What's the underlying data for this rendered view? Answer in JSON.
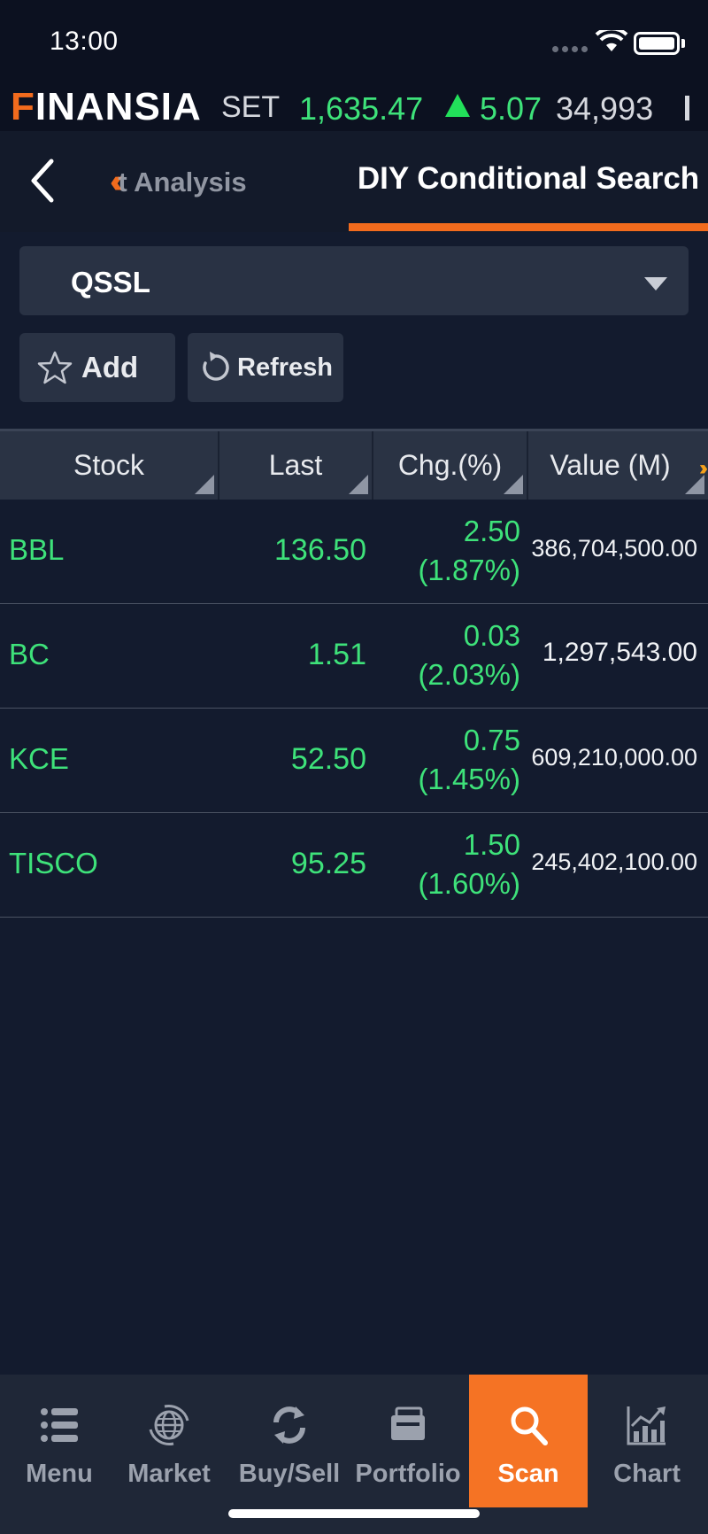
{
  "status": {
    "time": "13:00"
  },
  "ticker": {
    "brand_f": "F",
    "brand_rest": "INANSIA",
    "index": "SET",
    "value": "1,635.47",
    "change": "5.07",
    "volume": "34,993",
    "trend": "up"
  },
  "nav": {
    "prev_tab": "t Analysis",
    "active_tab": "DIY Conditional Search"
  },
  "condition": {
    "selected": "QSSL"
  },
  "buttons": {
    "add": "Add",
    "refresh": "Refresh"
  },
  "table": {
    "headers": {
      "stock": "Stock",
      "last": "Last",
      "chg": "Chg.(%)",
      "value": "Value (M)"
    },
    "rows": [
      {
        "stock": "BBL",
        "last": "136.50",
        "chg": "2.50",
        "pct": "(1.87%)",
        "value": "386,704,500.00"
      },
      {
        "stock": "BC",
        "last": "1.51",
        "chg": "0.03",
        "pct": "(2.03%)",
        "value": "1,297,543.00"
      },
      {
        "stock": "KCE",
        "last": "52.50",
        "chg": "0.75",
        "pct": "(1.45%)",
        "value": "609,210,000.00"
      },
      {
        "stock": "TISCO",
        "last": "95.25",
        "chg": "1.50",
        "pct": "(1.60%)",
        "value": "245,402,100.00"
      }
    ]
  },
  "tabs": [
    {
      "label": "Menu",
      "icon": "menu-icon"
    },
    {
      "label": "Market",
      "icon": "globe-icon"
    },
    {
      "label": "Buy/Sell",
      "icon": "swap-icon"
    },
    {
      "label": "Portfolio",
      "icon": "portfolio-icon"
    },
    {
      "label": "Scan",
      "icon": "search-icon",
      "active": true
    },
    {
      "label": "Chart",
      "icon": "chart-icon"
    }
  ],
  "colors": {
    "accent": "#f26b1d",
    "up": "#3ee27a",
    "background": "#131b2e"
  }
}
